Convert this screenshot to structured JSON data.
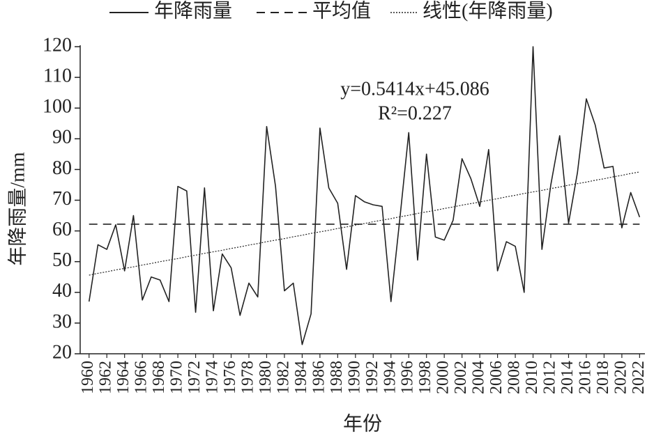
{
  "chart_data": {
    "type": "line",
    "legend_position": "top",
    "xlabel": "年份",
    "ylabel": "年降雨量/mm",
    "annotations": [
      "y=0.5414x+45.086",
      "R²=0.227"
    ],
    "x": [
      1960,
      1961,
      1962,
      1963,
      1964,
      1965,
      1966,
      1967,
      1968,
      1969,
      1970,
      1971,
      1972,
      1973,
      1974,
      1975,
      1976,
      1977,
      1978,
      1979,
      1980,
      1981,
      1982,
      1983,
      1984,
      1985,
      1986,
      1987,
      1988,
      1989,
      1990,
      1991,
      1992,
      1993,
      1994,
      1995,
      1996,
      1997,
      1998,
      1999,
      2000,
      2001,
      2002,
      2003,
      2004,
      2005,
      2006,
      2007,
      2008,
      2009,
      2010,
      2011,
      2012,
      2013,
      2014,
      2015,
      2016,
      2017,
      2018,
      2019,
      2020,
      2021,
      2022
    ],
    "series": [
      {
        "name": "年降雨量",
        "color": "#222222",
        "style": "solid",
        "values": [
          37,
          55.5,
          54,
          62,
          47,
          65,
          37.5,
          45,
          44,
          37,
          74.5,
          73,
          33.5,
          74,
          34,
          52.5,
          48,
          32.5,
          43,
          38.5,
          94,
          74.5,
          40.5,
          43,
          23,
          33,
          93.5,
          74,
          69,
          47.5,
          71.5,
          69.5,
          68.5,
          68,
          37,
          64,
          92,
          50.5,
          85,
          58,
          57,
          63.5,
          83.5,
          77,
          68,
          86.5,
          47,
          56.5,
          55,
          40,
          120,
          54,
          75,
          91,
          62.5,
          79,
          103,
          94.5,
          80.5,
          81,
          61,
          72.5,
          64.5
        ]
      },
      {
        "name": "平均值",
        "color": "#222222",
        "style": "dashed",
        "values": [
          62.2,
          62.2,
          62.2,
          62.2,
          62.2,
          62.2,
          62.2,
          62.2,
          62.2,
          62.2,
          62.2,
          62.2,
          62.2,
          62.2,
          62.2,
          62.2,
          62.2,
          62.2,
          62.2,
          62.2,
          62.2,
          62.2,
          62.2,
          62.2,
          62.2,
          62.2,
          62.2,
          62.2,
          62.2,
          62.2,
          62.2,
          62.2,
          62.2,
          62.2,
          62.2,
          62.2,
          62.2,
          62.2,
          62.2,
          62.2,
          62.2,
          62.2,
          62.2,
          62.2,
          62.2,
          62.2,
          62.2,
          62.2,
          62.2,
          62.2,
          62.2,
          62.2,
          62.2,
          62.2,
          62.2,
          62.2,
          62.2,
          62.2,
          62.2,
          62.2,
          62.2,
          62.2,
          62.2
        ]
      },
      {
        "name": "线性(年降雨量)",
        "color": "#222222",
        "style": "dotted",
        "values": [
          45.6,
          46.2,
          46.7,
          47.3,
          47.8,
          48.3,
          48.9,
          49.4,
          50.0,
          50.5,
          51.0,
          51.6,
          52.1,
          52.7,
          53.2,
          53.7,
          54.3,
          54.8,
          55.4,
          55.9,
          56.5,
          57.0,
          57.5,
          58.1,
          58.6,
          59.2,
          59.7,
          60.2,
          60.8,
          61.3,
          61.9,
          62.4,
          63.0,
          63.5,
          64.0,
          64.6,
          65.1,
          65.7,
          66.2,
          66.7,
          67.3,
          67.8,
          68.4,
          68.9,
          69.4,
          70.0,
          70.5,
          71.1,
          71.6,
          72.2,
          72.7,
          73.2,
          73.8,
          74.3,
          74.9,
          75.4,
          75.9,
          76.5,
          77.0,
          77.6,
          78.1,
          78.7,
          79.2
        ]
      }
    ],
    "xlim": [
      1959,
      2022.6
    ],
    "xticks": [
      1960,
      1962,
      1964,
      1966,
      1968,
      1970,
      1972,
      1974,
      1976,
      1978,
      1980,
      1982,
      1984,
      1986,
      1988,
      1990,
      1992,
      1994,
      1996,
      1998,
      2000,
      2002,
      2004,
      2006,
      2008,
      2010,
      2012,
      2014,
      2016,
      2018,
      2020,
      2022
    ],
    "ylim": [
      20,
      120
    ],
    "yticks": [
      20,
      30,
      40,
      50,
      60,
      70,
      80,
      90,
      100,
      110,
      120
    ],
    "grid": false
  }
}
